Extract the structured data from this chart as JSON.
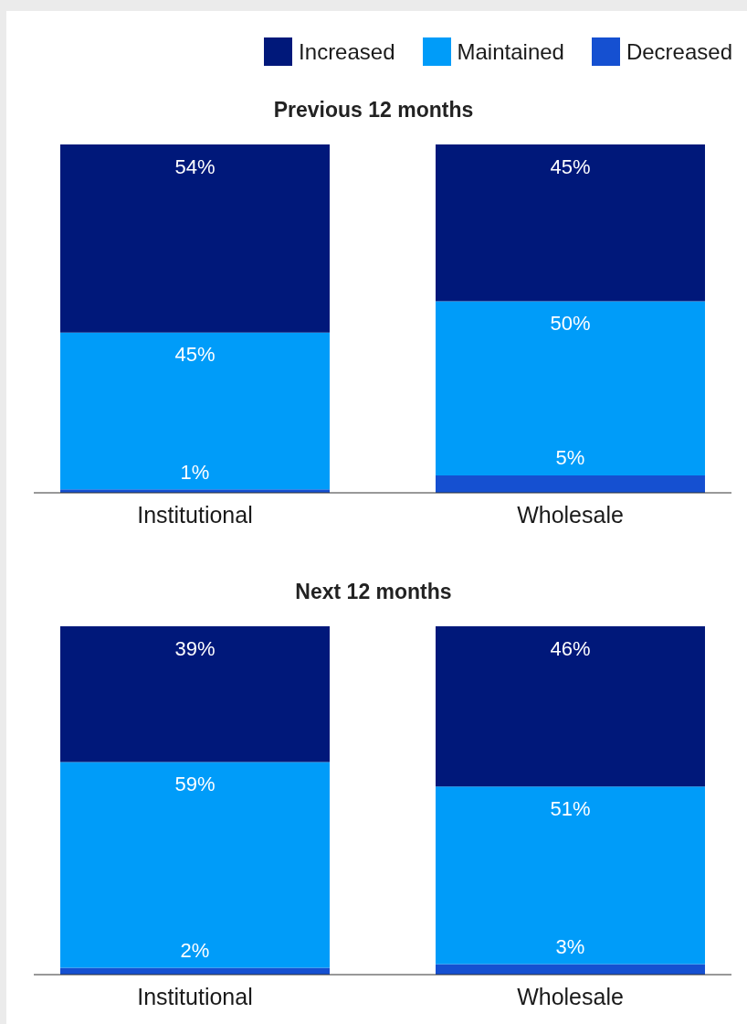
{
  "chart_data": [
    {
      "type": "bar",
      "title": "Previous 12 months",
      "categories": [
        "Institutional",
        "Wholesale"
      ],
      "stacked": true,
      "legend": "top right",
      "tick_labels": "x",
      "series": [
        {
          "name": "Decreased",
          "color": "#1550d1",
          "values": [
            1,
            5
          ],
          "value_labels": [
            "1%",
            "5%"
          ]
        },
        {
          "name": "Maintained",
          "color": "#009cf9",
          "values": [
            45,
            50
          ],
          "value_labels": [
            "45%",
            "50%"
          ]
        },
        {
          "name": "Increased",
          "color": "#00187a",
          "values": [
            54,
            45
          ],
          "value_labels": [
            "54%",
            "45%"
          ]
        }
      ]
    },
    {
      "type": "bar",
      "title": "Next 12 months",
      "categories": [
        "Institutional",
        "Wholesale"
      ],
      "stacked": true,
      "tick_labels": "x",
      "series": [
        {
          "color": "#1550d1",
          "values": [
            2,
            3
          ],
          "value_labels": [
            "2%",
            "3%"
          ]
        },
        {
          "color": "#009cf9",
          "values": [
            59,
            51
          ],
          "value_labels": [
            "59%",
            "51%"
          ]
        },
        {
          "color": "#00187a",
          "values": [
            39,
            46
          ],
          "value_labels": [
            "39%",
            "46%"
          ]
        }
      ]
    }
  ]
}
